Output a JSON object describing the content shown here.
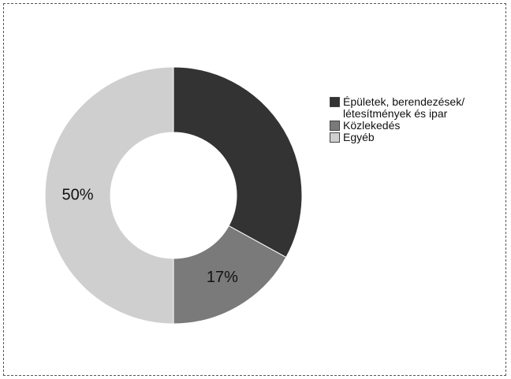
{
  "chart_data": {
    "type": "donut",
    "categories": [
      "Épületek, berendezések/ létesítmények és ipar",
      "Közlekedés",
      "Egyéb"
    ],
    "values": [
      33,
      17,
      50
    ],
    "value_labels": [
      null,
      "17%",
      "50%"
    ],
    "colors": [
      "#333333",
      "#7a7a7a",
      "#cfcfcf"
    ]
  }
}
